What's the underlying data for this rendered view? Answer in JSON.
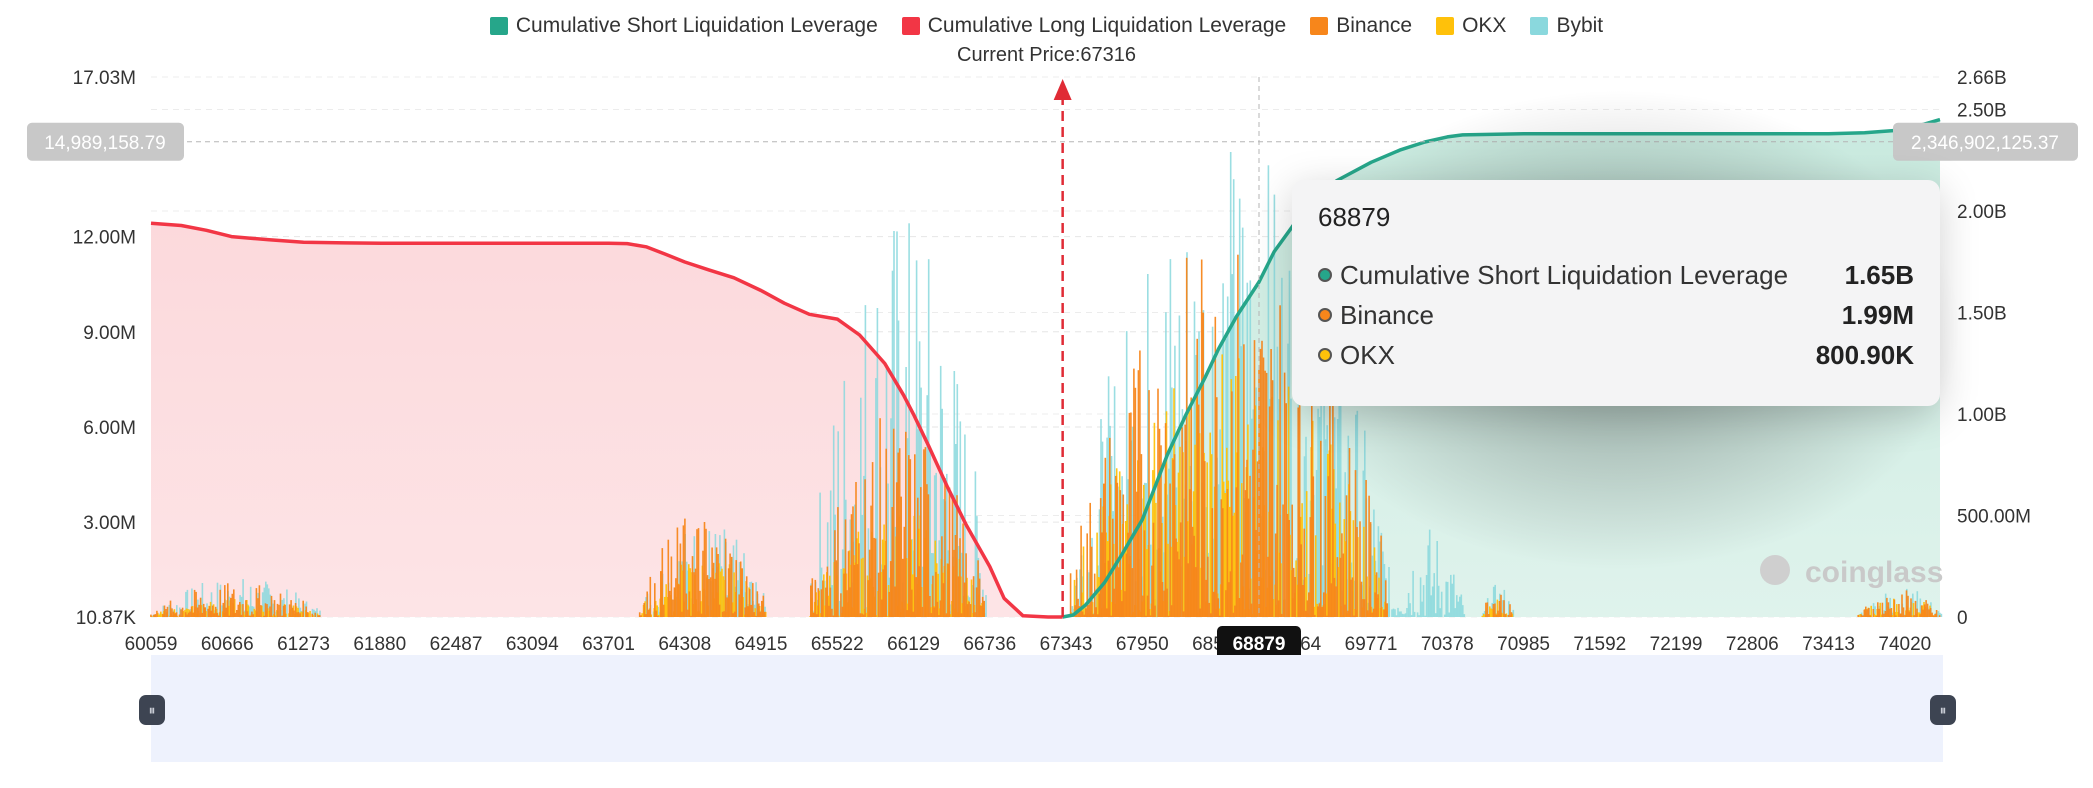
{
  "chart_data": {
    "type": "bar",
    "legend": [
      {
        "label": "Cumulative Short Liquidation Leverage",
        "color": "#26a68a"
      },
      {
        "label": "Cumulative Long Liquidation Leverage",
        "color": "#f23645"
      },
      {
        "label": "Binance",
        "color": "#f7861b"
      },
      {
        "label": "OKX",
        "color": "#ffc10a"
      },
      {
        "label": "Bybit",
        "color": "#8ad8dd"
      }
    ],
    "current_price_label": "Current Price:67316",
    "current_price": 67316,
    "x_tick_labels": [
      "60059",
      "60666",
      "61273",
      "61880",
      "62487",
      "63094",
      "63701",
      "64308",
      "64915",
      "65522",
      "66129",
      "66736",
      "67343",
      "67950",
      "68557",
      "69164",
      "69771",
      "70378",
      "70985",
      "71592",
      "72199",
      "72806",
      "73413",
      "74020"
    ],
    "xlim": [
      60059,
      74300
    ],
    "y_left_ticks": [
      "10.87K",
      "3.00M",
      "6.00M",
      "9.00M",
      "12.00M",
      "17.03M"
    ],
    "y_left_tick_values": [
      10870,
      3000000,
      6000000,
      9000000,
      12000000,
      17030000
    ],
    "y_left_lim": [
      10870,
      17030000
    ],
    "y_right_ticks": [
      "0",
      "500.00M",
      "1.00B",
      "1.50B",
      "2.00B",
      "2.50B",
      "2.66B"
    ],
    "y_right_tick_values": [
      0,
      500000000,
      1000000000,
      1500000000,
      2000000000,
      2500000000,
      2660000000
    ],
    "y_right_lim": [
      0,
      2660000000
    ],
    "crosshair_left_label": "14,989,158.79",
    "crosshair_left_value": 14989158.79,
    "crosshair_right_label": "2,346,902,125.37",
    "crosshair_x_label": "68879",
    "crosshair_x": 68879,
    "long_cumulative": {
      "name": "Cumulative Long Liquidation Leverage",
      "x": [
        60059,
        60300,
        60500,
        60700,
        61000,
        61273,
        61600,
        62000,
        62487,
        63094,
        63701,
        63850,
        64000,
        64150,
        64308,
        64500,
        64700,
        64915,
        65100,
        65300,
        65522,
        65700,
        65900,
        66050,
        66129,
        66250,
        66400,
        66550,
        66736,
        66850,
        67000,
        67200,
        67316
      ],
      "y": [
        12420000,
        12350000,
        12200000,
        12000000,
        11900000,
        11820000,
        11800000,
        11790000,
        11790000,
        11790000,
        11790000,
        11780000,
        11680000,
        11450000,
        11200000,
        10950000,
        10700000,
        10300000,
        9900000,
        9550000,
        9400000,
        8900000,
        8000000,
        7000000,
        6400000,
        5400000,
        4100000,
        2900000,
        1600000,
        600000,
        50000,
        10870,
        10870
      ]
    },
    "short_cumulative": {
      "name": "Cumulative Short Liquidation Leverage",
      "x": [
        67316,
        67400,
        67500,
        67650,
        67800,
        67950,
        68050,
        68150,
        68300,
        68450,
        68557,
        68700,
        68879,
        69000,
        69164,
        69300,
        69500,
        69771,
        70000,
        70200,
        70378,
        70500,
        70985,
        71592,
        72199,
        72806,
        73413,
        73700,
        74020,
        74300
      ],
      "y": [
        0,
        10000000,
        60000000,
        170000000,
        320000000,
        480000000,
        640000000,
        800000000,
        1000000000,
        1180000000,
        1320000000,
        1480000000,
        1650000000,
        1800000000,
        1940000000,
        2050000000,
        2150000000,
        2240000000,
        2300000000,
        2340000000,
        2365000000,
        2375000000,
        2380000000,
        2380000000,
        2380000000,
        2380000000,
        2380000000,
        2385000000,
        2400000000,
        2450000000
      ]
    },
    "exchange_bars": {
      "note": "clustered liquidation leverage per price level (left axis)",
      "series": [
        {
          "name": "Binance",
          "clusters": [
            {
              "from": 60059,
              "to": 61420,
              "peak": 1100000
            },
            {
              "from": 63950,
              "to": 64950,
              "peak": 3500000
            },
            {
              "from": 65300,
              "to": 66700,
              "peak": 6500000
            },
            {
              "from": 67380,
              "to": 69900,
              "peak": 12300000
            },
            {
              "from": 70650,
              "to": 70900,
              "peak": 1000000
            },
            {
              "from": 73650,
              "to": 74300,
              "peak": 900000
            }
          ]
        },
        {
          "name": "OKX",
          "clusters": [
            {
              "from": 60059,
              "to": 61420,
              "peak": 600000
            },
            {
              "from": 63950,
              "to": 64950,
              "peak": 2000000
            },
            {
              "from": 65300,
              "to": 66700,
              "peak": 3500000
            },
            {
              "from": 67380,
              "to": 69900,
              "peak": 8500000
            },
            {
              "from": 70650,
              "to": 70900,
              "peak": 600000
            },
            {
              "from": 73650,
              "to": 74300,
              "peak": 700000
            }
          ]
        },
        {
          "name": "Bybit",
          "clusters": [
            {
              "from": 60059,
              "to": 61420,
              "peak": 1300000
            },
            {
              "from": 63950,
              "to": 64950,
              "peak": 3200000
            },
            {
              "from": 65300,
              "to": 66700,
              "peak": 13300000
            },
            {
              "from": 67380,
              "to": 69900,
              "peak": 15500000
            },
            {
              "from": 69900,
              "to": 70500,
              "peak": 3000000
            },
            {
              "from": 70650,
              "to": 70900,
              "peak": 1100000
            },
            {
              "from": 73650,
              "to": 74300,
              "peak": 1000000
            }
          ]
        }
      ]
    },
    "tooltip": {
      "title": "68879",
      "rows": [
        {
          "label": "Cumulative Short Liquidation Leverage",
          "value": "1.65B",
          "color": "#26a68a"
        },
        {
          "label": "Binance",
          "value": "1.99M",
          "color": "#f7861b"
        },
        {
          "label": "OKX",
          "value": "800.90K",
          "color": "#ffc10a"
        }
      ]
    },
    "watermark": "coinglass"
  }
}
